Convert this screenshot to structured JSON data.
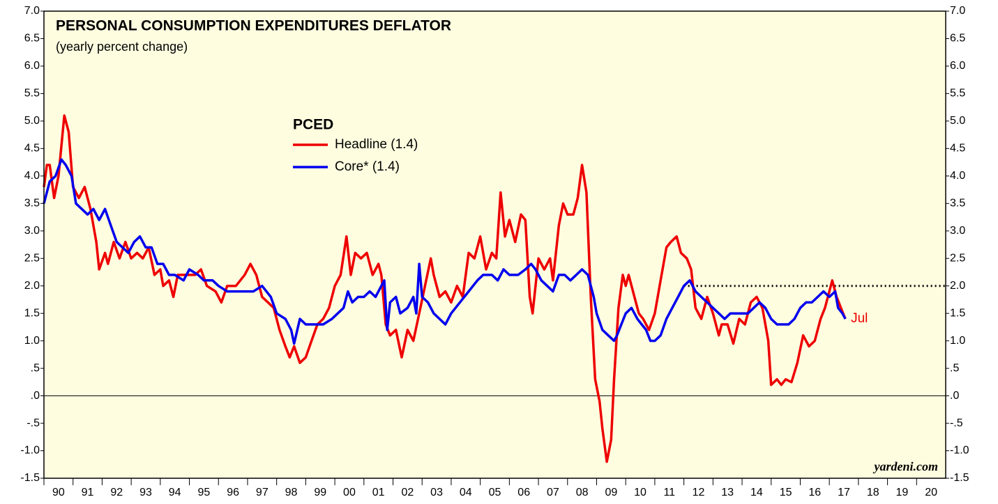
{
  "chart_data": {
    "type": "line",
    "title": "PERSONAL CONSUMPTION EXPENDITURES DEFLATOR",
    "subtitle": "(yearly percent change)",
    "legend_title": "PCED",
    "source": "yardeni.com",
    "annotation": {
      "text": "Jul",
      "x": 2017.55,
      "y": 1.4,
      "color": "#ee0000"
    },
    "reference_line": {
      "y": 2.0,
      "x": [
        2012,
        2021
      ],
      "style": "dotted",
      "color": "#000000"
    },
    "xlim": [
      1990,
      2021
    ],
    "ylim": [
      -1.5,
      7.0
    ],
    "xticks": [
      {
        "value": 1990,
        "label": "90"
      },
      {
        "value": 1991,
        "label": "91"
      },
      {
        "value": 1992,
        "label": "92"
      },
      {
        "value": 1993,
        "label": "93"
      },
      {
        "value": 1994,
        "label": "94"
      },
      {
        "value": 1995,
        "label": "95"
      },
      {
        "value": 1996,
        "label": "96"
      },
      {
        "value": 1997,
        "label": "97"
      },
      {
        "value": 1998,
        "label": "98"
      },
      {
        "value": 1999,
        "label": "99"
      },
      {
        "value": 2000,
        "label": "00"
      },
      {
        "value": 2001,
        "label": "01"
      },
      {
        "value": 2002,
        "label": "02"
      },
      {
        "value": 2003,
        "label": "03"
      },
      {
        "value": 2004,
        "label": "04"
      },
      {
        "value": 2005,
        "label": "05"
      },
      {
        "value": 2006,
        "label": "06"
      },
      {
        "value": 2007,
        "label": "07"
      },
      {
        "value": 2008,
        "label": "08"
      },
      {
        "value": 2009,
        "label": "09"
      },
      {
        "value": 2010,
        "label": "10"
      },
      {
        "value": 2011,
        "label": "11"
      },
      {
        "value": 2012,
        "label": "12"
      },
      {
        "value": 2013,
        "label": "13"
      },
      {
        "value": 2014,
        "label": "14"
      },
      {
        "value": 2015,
        "label": "15"
      },
      {
        "value": 2016,
        "label": "16"
      },
      {
        "value": 2017,
        "label": "17"
      },
      {
        "value": 2018,
        "label": "18"
      },
      {
        "value": 2019,
        "label": "19"
      },
      {
        "value": 2020,
        "label": "20"
      }
    ],
    "yticks": [
      {
        "value": 7.0,
        "label": "7.0"
      },
      {
        "value": 6.5,
        "label": "6.5"
      },
      {
        "value": 6.0,
        "label": "6.0"
      },
      {
        "value": 5.5,
        "label": "5.5"
      },
      {
        "value": 5.0,
        "label": "5.0"
      },
      {
        "value": 4.5,
        "label": "4.5"
      },
      {
        "value": 4.0,
        "label": "4.0"
      },
      {
        "value": 3.5,
        "label": "3.5"
      },
      {
        "value": 3.0,
        "label": "3.0"
      },
      {
        "value": 2.5,
        "label": "2.5"
      },
      {
        "value": 2.0,
        "label": "2.0"
      },
      {
        "value": 1.5,
        "label": "1.5"
      },
      {
        "value": 1.0,
        "label": "1.0"
      },
      {
        "value": 0.5,
        "label": ".5"
      },
      {
        "value": 0,
        "label": ".0"
      },
      {
        "value": -0.5,
        "label": "-.5"
      },
      {
        "value": -1.0,
        "label": "-1.0"
      },
      {
        "value": -1.5,
        "label": "-1.5"
      }
    ],
    "series": [
      {
        "name": "Headline (1.4)",
        "color": "#ee0000",
        "x": [
          1990.0,
          1990.1,
          1990.2,
          1990.35,
          1990.5,
          1990.7,
          1990.85,
          1991.0,
          1991.2,
          1991.4,
          1991.6,
          1991.8,
          1991.9,
          1992.1,
          1992.2,
          1992.4,
          1992.6,
          1992.8,
          1993.0,
          1993.2,
          1993.4,
          1993.6,
          1993.8,
          1994.0,
          1994.1,
          1994.3,
          1994.45,
          1994.6,
          1994.9,
          1995.2,
          1995.4,
          1995.6,
          1995.9,
          1996.1,
          1996.3,
          1996.6,
          1996.9,
          1997.1,
          1997.3,
          1997.5,
          1997.7,
          1997.9,
          1998.1,
          1998.3,
          1998.45,
          1998.6,
          1998.8,
          1999.0,
          1999.2,
          1999.4,
          1999.6,
          1999.8,
          2000.0,
          2000.2,
          2000.4,
          2000.55,
          2000.7,
          2000.9,
          2001.1,
          2001.3,
          2001.5,
          2001.6,
          2001.75,
          2001.9,
          2002.1,
          2002.3,
          2002.5,
          2002.7,
          2002.9,
          2003.1,
          2003.3,
          2003.4,
          2003.6,
          2003.8,
          2004.0,
          2004.2,
          2004.4,
          2004.6,
          2004.8,
          2005.0,
          2005.2,
          2005.4,
          2005.55,
          2005.7,
          2005.85,
          2006.0,
          2006.2,
          2006.4,
          2006.55,
          2006.7,
          2006.8,
          2007.0,
          2007.2,
          2007.4,
          2007.5,
          2007.7,
          2007.85,
          2008.0,
          2008.2,
          2008.35,
          2008.5,
          2008.65,
          2008.8,
          2008.95,
          2009.1,
          2009.2,
          2009.35,
          2009.5,
          2009.6,
          2009.75,
          2009.9,
          2010.0,
          2010.1,
          2010.3,
          2010.45,
          2010.6,
          2010.8,
          2011.0,
          2011.2,
          2011.4,
          2011.55,
          2011.75,
          2011.9,
          2012.1,
          2012.25,
          2012.4,
          2012.6,
          2012.8,
          2013.0,
          2013.2,
          2013.3,
          2013.5,
          2013.7,
          2013.9,
          2014.1,
          2014.3,
          2014.5,
          2014.7,
          2014.9,
          2015.0,
          2015.2,
          2015.35,
          2015.5,
          2015.7,
          2015.9,
          2016.1,
          2016.3,
          2016.5,
          2016.7,
          2016.85,
          2017.0,
          2017.1,
          2017.25,
          2017.4,
          2017.55
        ],
        "values": [
          3.8,
          4.2,
          4.2,
          3.6,
          4.0,
          5.1,
          4.8,
          3.8,
          3.6,
          3.8,
          3.4,
          2.8,
          2.3,
          2.6,
          2.4,
          2.8,
          2.5,
          2.8,
          2.5,
          2.6,
          2.5,
          2.7,
          2.2,
          2.3,
          2.0,
          2.1,
          1.8,
          2.2,
          2.2,
          2.2,
          2.3,
          2.0,
          1.9,
          1.7,
          2.0,
          2.0,
          2.2,
          2.4,
          2.2,
          1.8,
          1.7,
          1.6,
          1.2,
          0.9,
          0.7,
          0.9,
          0.6,
          0.7,
          1.0,
          1.3,
          1.4,
          1.6,
          2.0,
          2.2,
          2.9,
          2.2,
          2.6,
          2.5,
          2.6,
          2.2,
          2.4,
          2.2,
          1.3,
          1.1,
          1.2,
          0.7,
          1.2,
          1.0,
          1.5,
          2.0,
          2.5,
          2.2,
          1.8,
          1.9,
          1.7,
          2.0,
          1.8,
          2.6,
          2.5,
          2.9,
          2.3,
          2.6,
          2.5,
          3.7,
          2.9,
          3.2,
          2.8,
          3.3,
          3.2,
          1.8,
          1.5,
          2.5,
          2.3,
          2.5,
          2.1,
          3.1,
          3.5,
          3.3,
          3.3,
          3.6,
          4.2,
          3.7,
          1.8,
          0.3,
          -0.1,
          -0.6,
          -1.2,
          -0.8,
          0.3,
          1.6,
          2.2,
          2.0,
          2.2,
          1.8,
          1.5,
          1.4,
          1.2,
          1.5,
          2.1,
          2.7,
          2.8,
          2.9,
          2.6,
          2.5,
          2.3,
          1.6,
          1.4,
          1.8,
          1.5,
          1.1,
          1.3,
          1.3,
          0.95,
          1.4,
          1.3,
          1.7,
          1.8,
          1.6,
          1.0,
          0.2,
          0.3,
          0.2,
          0.3,
          0.25,
          0.6,
          1.1,
          0.9,
          1.0,
          1.4,
          1.6,
          1.9,
          2.1,
          1.8,
          1.6,
          1.4
        ]
      },
      {
        "name": "Core* (1.4)",
        "color": "#0000ee",
        "x": [
          1990.0,
          1990.2,
          1990.4,
          1990.6,
          1990.75,
          1990.95,
          1991.1,
          1991.3,
          1991.5,
          1991.7,
          1991.9,
          1992.1,
          1992.3,
          1992.5,
          1992.7,
          1992.9,
          1993.1,
          1993.3,
          1993.5,
          1993.7,
          1993.9,
          1994.1,
          1994.3,
          1994.5,
          1994.8,
          1995.0,
          1995.3,
          1995.5,
          1995.8,
          1996.0,
          1996.3,
          1996.6,
          1996.9,
          1997.2,
          1997.5,
          1997.8,
          1998.0,
          1998.3,
          1998.5,
          1998.6,
          1998.8,
          1999.0,
          1999.3,
          1999.6,
          1999.9,
          2000.1,
          2000.3,
          2000.45,
          2000.6,
          2000.8,
          2001.0,
          2001.2,
          2001.4,
          2001.6,
          2001.7,
          2001.8,
          2001.9,
          2002.1,
          2002.25,
          2002.5,
          2002.7,
          2002.8,
          2002.9,
          2003.0,
          2003.2,
          2003.4,
          2003.6,
          2003.8,
          2004.0,
          2004.3,
          2004.6,
          2004.9,
          2005.1,
          2005.4,
          2005.6,
          2005.8,
          2006.0,
          2006.3,
          2006.55,
          2006.75,
          2006.9,
          2007.1,
          2007.3,
          2007.5,
          2007.7,
          2007.9,
          2008.1,
          2008.3,
          2008.5,
          2008.7,
          2008.9,
          2009.0,
          2009.2,
          2009.4,
          2009.6,
          2009.7,
          2009.85,
          2010.0,
          2010.2,
          2010.4,
          2010.55,
          2010.7,
          2010.85,
          2011.0,
          2011.2,
          2011.4,
          2011.6,
          2011.8,
          2012.0,
          2012.2,
          2012.4,
          2012.6,
          2012.8,
          2013.0,
          2013.2,
          2013.4,
          2013.6,
          2013.8,
          2014.0,
          2014.2,
          2014.4,
          2014.6,
          2014.8,
          2015.0,
          2015.2,
          2015.4,
          2015.6,
          2015.8,
          2016.0,
          2016.2,
          2016.4,
          2016.6,
          2016.8,
          2017.0,
          2017.2,
          2017.3,
          2017.45,
          2017.55
        ],
        "values": [
          3.5,
          3.9,
          4.0,
          4.3,
          4.2,
          4.0,
          3.5,
          3.4,
          3.3,
          3.4,
          3.2,
          3.4,
          3.1,
          2.8,
          2.7,
          2.6,
          2.8,
          2.9,
          2.7,
          2.7,
          2.4,
          2.4,
          2.2,
          2.2,
          2.1,
          2.3,
          2.2,
          2.1,
          2.1,
          2.0,
          1.9,
          1.9,
          1.9,
          1.9,
          2.0,
          1.8,
          1.5,
          1.4,
          1.2,
          0.95,
          1.4,
          1.3,
          1.3,
          1.3,
          1.4,
          1.5,
          1.6,
          1.9,
          1.7,
          1.8,
          1.8,
          1.9,
          1.8,
          2.0,
          2.1,
          1.2,
          1.7,
          1.8,
          1.5,
          1.6,
          1.8,
          1.5,
          2.4,
          1.8,
          1.7,
          1.5,
          1.4,
          1.3,
          1.5,
          1.7,
          1.9,
          2.1,
          2.2,
          2.2,
          2.1,
          2.3,
          2.2,
          2.2,
          2.3,
          2.4,
          2.3,
          2.1,
          2.0,
          1.9,
          2.2,
          2.2,
          2.1,
          2.2,
          2.3,
          2.2,
          1.8,
          1.5,
          1.2,
          1.1,
          1.0,
          1.1,
          1.3,
          1.5,
          1.6,
          1.4,
          1.3,
          1.2,
          1.0,
          1.0,
          1.1,
          1.4,
          1.6,
          1.8,
          2.0,
          2.1,
          1.9,
          1.8,
          1.7,
          1.6,
          1.5,
          1.4,
          1.5,
          1.5,
          1.5,
          1.5,
          1.6,
          1.7,
          1.6,
          1.4,
          1.3,
          1.3,
          1.3,
          1.4,
          1.6,
          1.7,
          1.7,
          1.8,
          1.9,
          1.8,
          1.9,
          1.6,
          1.5,
          1.4
        ]
      }
    ]
  }
}
